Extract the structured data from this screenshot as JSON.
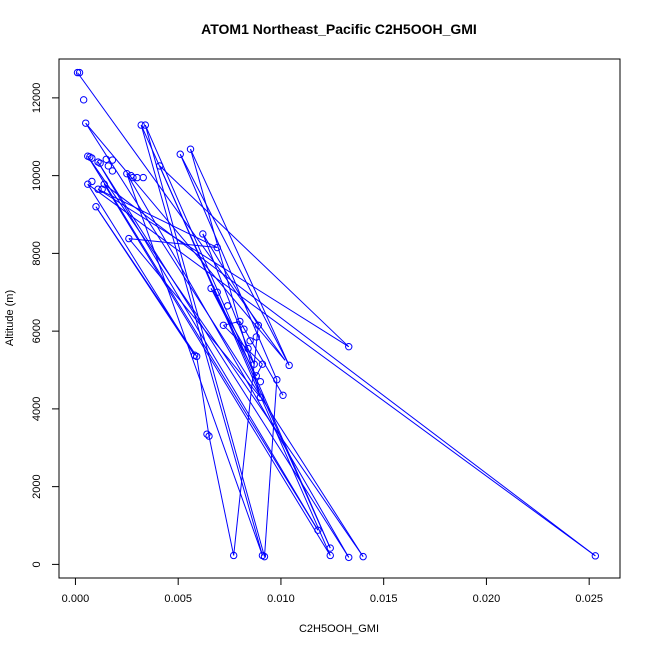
{
  "chart_data": {
    "type": "line",
    "title": "ATOM1 Northeast_Pacific C2H5OOH_GMI",
    "xlabel": "C2H5OOH_GMI",
    "ylabel": "Altitude (m)",
    "xlim": [
      -0.0008,
      0.0265
    ],
    "ylim": [
      -350,
      13000
    ],
    "xticks": [
      0.0,
      0.005,
      0.01,
      0.015,
      0.02,
      0.025
    ],
    "xtick_labels": [
      "0.000",
      "0.005",
      "0.010",
      "0.015",
      "0.020",
      "0.025"
    ],
    "yticks": [
      0,
      2000,
      4000,
      6000,
      8000,
      10000,
      12000
    ],
    "ytick_labels": [
      "0",
      "2000",
      "4000",
      "6000",
      "8000",
      "10000",
      "12000"
    ],
    "grid": false,
    "color": "#0000ff",
    "markers": "open-circle",
    "series": [
      {
        "points": [
          [
            0.0001,
            12650
          ],
          [
            0.0002,
            12650
          ],
          [
            0.0004,
            11950
          ],
          [
            0.0005,
            11350
          ],
          [
            0.0006,
            10500
          ],
          [
            0.0007,
            10480
          ],
          [
            0.0008,
            10450
          ],
          [
            0.0011,
            10350
          ],
          [
            0.0012,
            10320
          ],
          [
            0.0015,
            10420
          ],
          [
            0.0016,
            10250
          ],
          [
            0.0018,
            10400
          ],
          [
            0.0018,
            10120
          ],
          [
            0.0025,
            10050
          ],
          [
            0.0027,
            10000
          ],
          [
            0.0028,
            9950
          ],
          [
            0.003,
            9950
          ],
          [
            0.0033,
            9950
          ],
          [
            0.0041,
            10250
          ],
          [
            0.0006,
            9780
          ],
          [
            0.0008,
            9850
          ],
          [
            0.0011,
            9650
          ],
          [
            0.0013,
            9650
          ],
          [
            0.0014,
            9780
          ],
          [
            0.001,
            9200
          ],
          [
            0.0026,
            8380
          ],
          [
            0.0032,
            11300
          ],
          [
            0.0034,
            11300
          ],
          [
            0.0051,
            10550
          ],
          [
            0.0056,
            10680
          ],
          [
            0.0062,
            8500
          ],
          [
            0.0069,
            8150
          ],
          [
            0.0066,
            7100
          ],
          [
            0.0069,
            7000
          ],
          [
            0.0074,
            6650
          ],
          [
            0.0072,
            6150
          ],
          [
            0.008,
            6250
          ],
          [
            0.0082,
            6050
          ],
          [
            0.0085,
            5750
          ],
          [
            0.0088,
            5850
          ],
          [
            0.0089,
            6150
          ],
          [
            0.0084,
            5550
          ],
          [
            0.0087,
            5150
          ],
          [
            0.0091,
            5150
          ],
          [
            0.0104,
            5120
          ],
          [
            0.0133,
            5600
          ],
          [
            0.0088,
            4850
          ],
          [
            0.009,
            4700
          ],
          [
            0.0098,
            4750
          ],
          [
            0.009,
            4300
          ],
          [
            0.0101,
            4350
          ],
          [
            0.0058,
            5380
          ],
          [
            0.0059,
            5350
          ],
          [
            0.0064,
            3350
          ],
          [
            0.0065,
            3300
          ],
          [
            0.0077,
            230
          ],
          [
            0.0091,
            230
          ],
          [
            0.0092,
            200
          ],
          [
            0.0118,
            880
          ],
          [
            0.0124,
            420
          ],
          [
            0.0124,
            230
          ],
          [
            0.0133,
            180
          ],
          [
            0.014,
            200
          ],
          [
            0.0253,
            220
          ]
        ],
        "path_order": [
          [
            0.0001,
            12650
          ],
          [
            0.0102,
            5250
          ],
          [
            0.0005,
            11350
          ],
          [
            0.014,
            200
          ],
          [
            0.0006,
            10500
          ],
          [
            0.0118,
            880
          ],
          [
            0.0011,
            10350
          ],
          [
            0.0133,
            180
          ],
          [
            0.0025,
            10050
          ],
          [
            0.0091,
            230
          ],
          [
            0.0032,
            11300
          ],
          [
            0.0124,
            420
          ],
          [
            0.0034,
            11300
          ],
          [
            0.0092,
            200
          ],
          [
            0.0098,
            4750
          ],
          [
            0.0051,
            10550
          ],
          [
            0.0104,
            5120
          ],
          [
            0.0056,
            10680
          ],
          [
            0.009,
            4300
          ],
          [
            0.0026,
            8380
          ],
          [
            0.0069,
            8150
          ],
          [
            0.0011,
            9650
          ],
          [
            0.0133,
            5600
          ],
          [
            0.0041,
            10250
          ],
          [
            0.0124,
            230
          ],
          [
            0.0014,
            9780
          ],
          [
            0.0253,
            220
          ],
          [
            0.0006,
            9780
          ],
          [
            0.0058,
            5380
          ],
          [
            0.001,
            9200
          ],
          [
            0.0059,
            5350
          ],
          [
            0.0065,
            3300
          ],
          [
            0.0077,
            230
          ],
          [
            0.0089,
            6150
          ],
          [
            0.0062,
            8500
          ],
          [
            0.0084,
            5550
          ],
          [
            0.0087,
            5150
          ],
          [
            0.0066,
            7100
          ],
          [
            0.0088,
            4850
          ],
          [
            0.0091,
            5150
          ],
          [
            0.0072,
            6150
          ],
          [
            0.008,
            6250
          ],
          [
            0.0101,
            4350
          ]
        ]
      }
    ]
  }
}
